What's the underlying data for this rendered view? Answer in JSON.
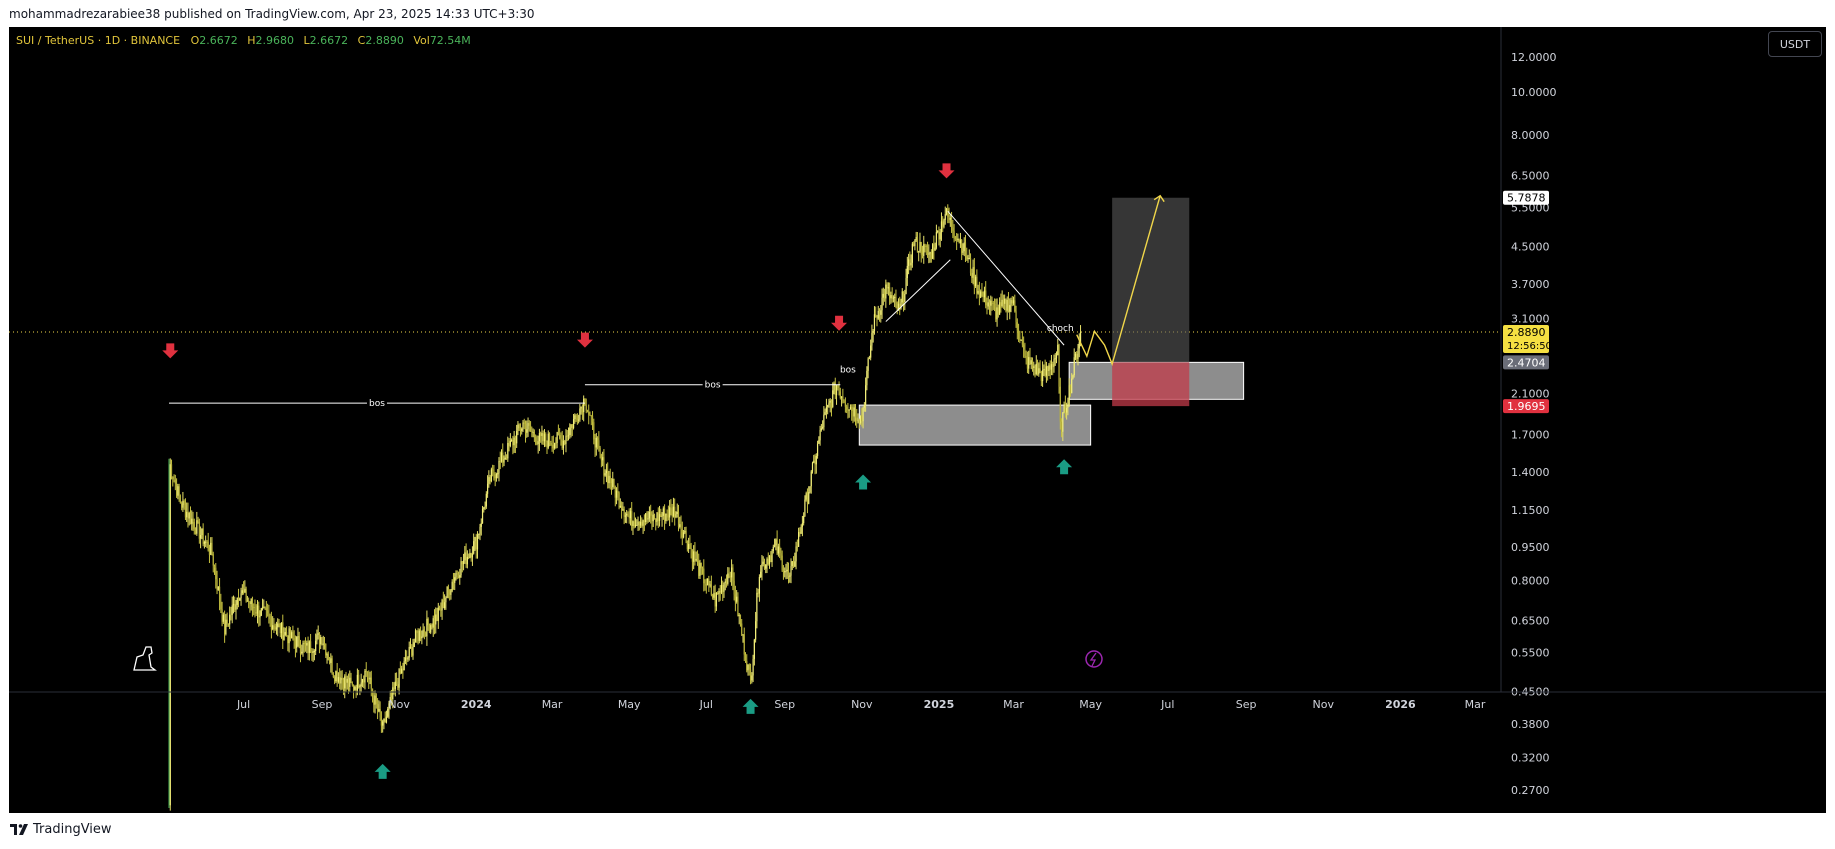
{
  "header": {
    "publisher_line": "mohammadrezarabiee38 published on TradingView.com, Apr 23, 2025 14:33 UTC+3:30"
  },
  "legend": {
    "symbol_line": "SUI / TetherUS · 1D · BINANCE",
    "open_label": "O",
    "open": "2.6672",
    "high_label": "H",
    "high": "2.9680",
    "low_label": "L",
    "low": "2.6672",
    "close_label": "C",
    "close": "2.8890",
    "vol_label": "Vol",
    "vol": "72.54M"
  },
  "currency_button": "USDT",
  "footer": {
    "brand": "TradingView"
  },
  "chart_data": {
    "type": "candlestick",
    "symbol": "SUI / TetherUS",
    "interval": "1D",
    "exchange": "BINANCE",
    "y_scale": "log",
    "ylim": [
      0.24,
      14.0
    ],
    "y_ticks": [
      12.0,
      10.0,
      8.0,
      6.5,
      5.5,
      4.5,
      3.7,
      3.1,
      2.1,
      1.7,
      1.4,
      1.15,
      0.95,
      0.8,
      0.65,
      0.55,
      0.45,
      0.38,
      0.32,
      0.27
    ],
    "y_tick_labels": [
      "12.0000",
      "10.0000",
      "8.0000",
      "6.5000",
      "5.5000",
      "4.5000",
      "3.7000",
      "3.1000",
      "2.1000",
      "1.7000",
      "1.4000",
      "1.1500",
      "0.9500",
      "0.8000",
      "0.6500",
      "0.5500",
      "0.4500",
      "0.3800",
      "0.3200",
      "0.2700"
    ],
    "x_range": [
      "2023-05-03",
      "2026-03-20"
    ],
    "x_ticks": [
      {
        "date": "2023-07-01",
        "label": "Jul"
      },
      {
        "date": "2023-09-01",
        "label": "Sep"
      },
      {
        "date": "2023-11-01",
        "label": "Nov"
      },
      {
        "date": "2024-01-01",
        "label": "2024"
      },
      {
        "date": "2024-03-01",
        "label": "Mar"
      },
      {
        "date": "2024-05-01",
        "label": "May"
      },
      {
        "date": "2024-07-01",
        "label": "Jul"
      },
      {
        "date": "2024-09-01",
        "label": "Sep"
      },
      {
        "date": "2024-11-01",
        "label": "Nov"
      },
      {
        "date": "2025-01-01",
        "label": "2025"
      },
      {
        "date": "2025-03-01",
        "label": "Mar"
      },
      {
        "date": "2025-05-01",
        "label": "May"
      },
      {
        "date": "2025-07-01",
        "label": "Jul"
      },
      {
        "date": "2025-09-01",
        "label": "Sep"
      },
      {
        "date": "2025-11-01",
        "label": "Nov"
      },
      {
        "date": "2026-01-01",
        "label": "2026"
      },
      {
        "date": "2026-03-01",
        "label": "Mar"
      }
    ],
    "price_path": [
      [
        "2023-05-03",
        0.25
      ],
      [
        "2023-05-04",
        1.45
      ],
      [
        "2023-05-12",
        1.2
      ],
      [
        "2023-05-25",
        1.05
      ],
      [
        "2023-06-06",
        0.92
      ],
      [
        "2023-06-16",
        0.62
      ],
      [
        "2023-06-28",
        0.76
      ],
      [
        "2023-07-08",
        0.7
      ],
      [
        "2023-07-20",
        0.66
      ],
      [
        "2023-08-05",
        0.6
      ],
      [
        "2023-08-20",
        0.56
      ],
      [
        "2023-09-01",
        0.6
      ],
      [
        "2023-09-10",
        0.5
      ],
      [
        "2023-09-25",
        0.46
      ],
      [
        "2023-10-06",
        0.5
      ],
      [
        "2023-10-19",
        0.37
      ],
      [
        "2023-10-30",
        0.47
      ],
      [
        "2023-11-15",
        0.6
      ],
      [
        "2023-12-01",
        0.66
      ],
      [
        "2023-12-15",
        0.82
      ],
      [
        "2024-01-01",
        0.98
      ],
      [
        "2024-01-12",
        1.35
      ],
      [
        "2024-01-25",
        1.55
      ],
      [
        "2024-02-07",
        1.8
      ],
      [
        "2024-02-20",
        1.65
      ],
      [
        "2024-03-10",
        1.65
      ],
      [
        "2024-03-27",
        2.05
      ],
      [
        "2024-04-08",
        1.5
      ],
      [
        "2024-04-18",
        1.3
      ],
      [
        "2024-05-01",
        1.1
      ],
      [
        "2024-05-20",
        1.1
      ],
      [
        "2024-06-06",
        1.15
      ],
      [
        "2024-06-25",
        0.85
      ],
      [
        "2024-07-08",
        0.72
      ],
      [
        "2024-07-20",
        0.85
      ],
      [
        "2024-08-05",
        0.47
      ],
      [
        "2024-08-12",
        0.85
      ],
      [
        "2024-08-25",
        0.95
      ],
      [
        "2024-09-05",
        0.8
      ],
      [
        "2024-09-15",
        1.1
      ],
      [
        "2024-10-01",
        1.8
      ],
      [
        "2024-10-12",
        2.2
      ],
      [
        "2024-10-20",
        2.0
      ],
      [
        "2024-11-01",
        1.85
      ],
      [
        "2024-11-10",
        3.0
      ],
      [
        "2024-11-20",
        3.6
      ],
      [
        "2024-12-01",
        3.2
      ],
      [
        "2024-12-12",
        4.6
      ],
      [
        "2024-12-25",
        4.3
      ],
      [
        "2025-01-06",
        5.35
      ],
      [
        "2025-01-20",
        4.5
      ],
      [
        "2025-02-01",
        3.6
      ],
      [
        "2025-02-15",
        3.2
      ],
      [
        "2025-02-28",
        3.4
      ],
      [
        "2025-03-10",
        2.5
      ],
      [
        "2025-03-25",
        2.3
      ],
      [
        "2025-04-05",
        2.6
      ],
      [
        "2025-04-07",
        1.75
      ],
      [
        "2025-04-15",
        2.2
      ],
      [
        "2025-04-23",
        2.889
      ]
    ],
    "price_labels": [
      {
        "value": 5.7878,
        "text": "5.7878",
        "style": "white"
      },
      {
        "value": 2.889,
        "text": "2.8890",
        "sub": "12:56:50",
        "style": "yellow"
      },
      {
        "value": 2.4704,
        "text": "2.4704",
        "style": "gray"
      },
      {
        "value": 1.9695,
        "text": "1.9695",
        "style": "red"
      }
    ],
    "current_price": 2.889,
    "bos_lines": [
      {
        "from": "2023-05-03",
        "to": "2024-03-27",
        "price": 2.0,
        "label": "bos"
      },
      {
        "from": "2024-03-27",
        "to": "2024-10-15",
        "price": 2.2,
        "label": "bos"
      },
      {
        "from": "2024-10-15",
        "to": "2024-10-27",
        "price": 2.38,
        "label": "bos"
      }
    ],
    "choch": {
      "from": "2025-01-08",
      "to": "2025-04-10",
      "label": "choch",
      "label_date": "2025-04-07",
      "label_price": 2.95
    },
    "zones": [
      {
        "from": "2024-10-30",
        "to": "2025-05-01",
        "top": 1.98,
        "bottom": 1.61
      },
      {
        "from": "2025-04-14",
        "to": "2025-08-30",
        "top": 2.47,
        "bottom": 2.04
      }
    ],
    "position": {
      "from": "2025-05-18",
      "to": "2025-07-18",
      "entry": 2.4704,
      "target": 5.7878,
      "stop": 1.9695
    },
    "projection": [
      [
        "2025-04-20",
        2.85
      ],
      [
        "2025-04-28",
        2.55
      ],
      [
        "2025-05-04",
        2.9
      ],
      [
        "2025-05-12",
        2.7
      ],
      [
        "2025-05-18",
        2.45
      ],
      [
        "2025-06-25",
        5.85
      ]
    ],
    "arrows_down": [
      [
        "2023-05-04",
        2.6
      ],
      [
        "2024-03-27",
        2.75
      ],
      [
        "2024-10-14",
        3.0
      ],
      [
        "2025-01-07",
        6.6
      ]
    ],
    "arrows_up": [
      [
        "2023-10-19",
        0.3
      ],
      [
        "2024-08-05",
        0.42
      ],
      [
        "2024-11-02",
        1.34
      ],
      [
        "2025-04-10",
        1.45
      ]
    ]
  }
}
